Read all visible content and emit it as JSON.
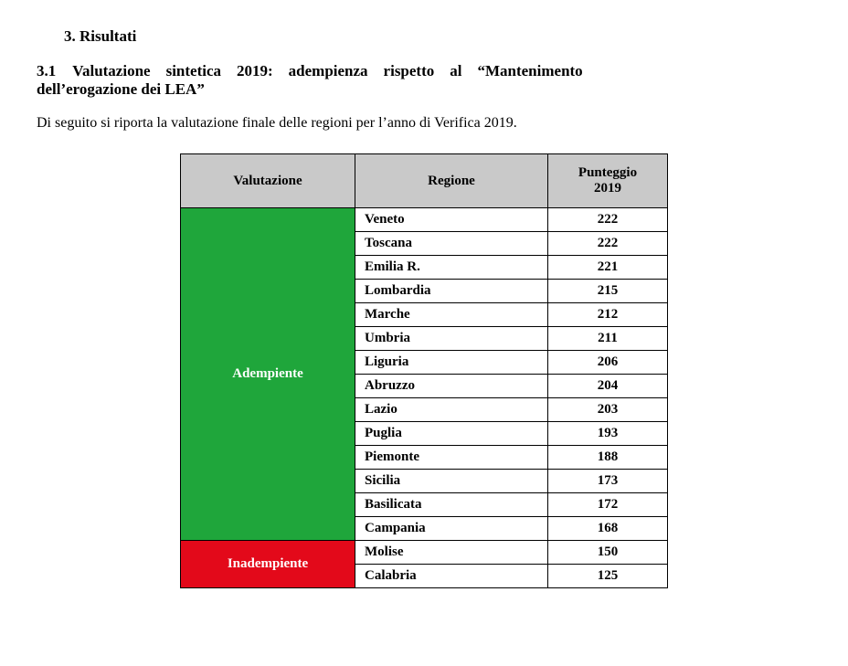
{
  "section": {
    "number": "3.",
    "title": "Risultati"
  },
  "subsection": {
    "number": "3.1",
    "line1_rest": "Valutazione    sintetica    2019:    adempienza    rispetto    al    “Mantenimento",
    "line2": "dell’erogazione dei LEA”"
  },
  "intro": "Di seguito si riporta la valutazione finale delle regioni per l’anno di Verifica 2019.",
  "table": {
    "headers": {
      "valutazione": "Valutazione",
      "regione": "Regione",
      "punteggio_l1": "Punteggio",
      "punteggio_l2": "2019"
    },
    "groups": [
      {
        "label": "Adempiente",
        "bg": "#1fa63b",
        "text": "#ffffff",
        "rows": [
          {
            "regione": "Veneto",
            "punteggio": "222"
          },
          {
            "regione": "Toscana",
            "punteggio": "222"
          },
          {
            "regione": "Emilia R.",
            "punteggio": "221"
          },
          {
            "regione": "Lombardia",
            "punteggio": "215"
          },
          {
            "regione": "Marche",
            "punteggio": "212"
          },
          {
            "regione": "Umbria",
            "punteggio": "211"
          },
          {
            "regione": "Liguria",
            "punteggio": "206"
          },
          {
            "regione": "Abruzzo",
            "punteggio": "204"
          },
          {
            "regione": "Lazio",
            "punteggio": "203"
          },
          {
            "regione": "Puglia",
            "punteggio": "193"
          },
          {
            "regione": "Piemonte",
            "punteggio": "188"
          },
          {
            "regione": "Sicilia",
            "punteggio": "173"
          },
          {
            "regione": "Basilicata",
            "punteggio": "172"
          },
          {
            "regione": "Campania",
            "punteggio": "168"
          }
        ]
      },
      {
        "label": "Inadempiente",
        "bg": "#e3091a",
        "text": "#ffffff",
        "rows": [
          {
            "regione": "Molise",
            "punteggio": "150"
          },
          {
            "regione": "Calabria",
            "punteggio": "125"
          }
        ]
      }
    ]
  }
}
